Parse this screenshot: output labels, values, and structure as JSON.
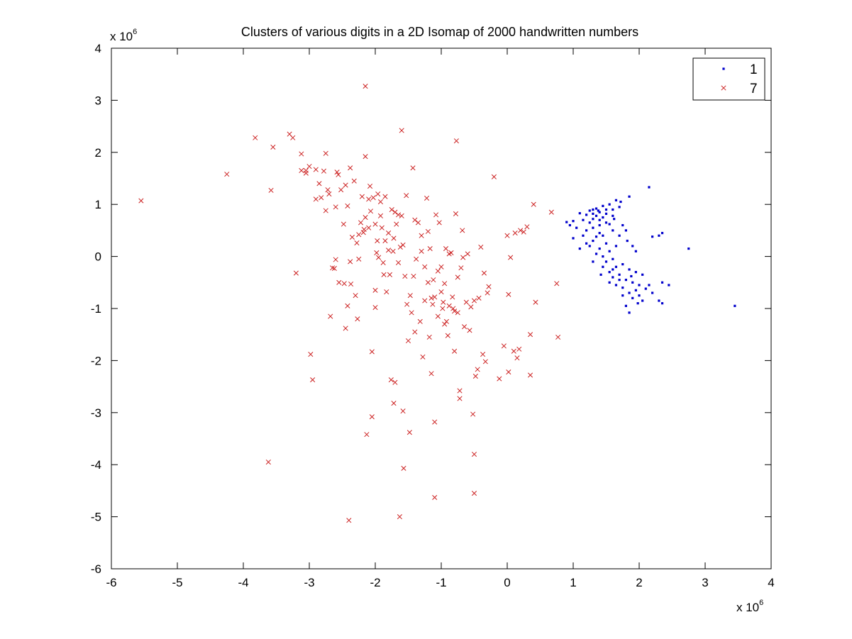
{
  "chart_data": {
    "type": "scatter",
    "title": "Clusters of various digits in a 2D Isomap of 2000 handwritten numbers",
    "xlabel": "",
    "ylabel": "",
    "x_exponent": "x 10",
    "x_exponent_power": "6",
    "y_exponent": "x 10",
    "y_exponent_power": "6",
    "xlim": [
      -6,
      4
    ],
    "ylim": [
      -6,
      4
    ],
    "xticks": [
      -6,
      -5,
      -4,
      -3,
      -2,
      -1,
      0,
      1,
      2,
      3,
      4
    ],
    "yticks": [
      -6,
      -5,
      -4,
      -3,
      -2,
      -1,
      0,
      1,
      2,
      3,
      4
    ],
    "grid": false,
    "legend_position": "top-right",
    "series": [
      {
        "name": "1",
        "marker": "dot",
        "color": "#0000cc",
        "points": [
          [
            2.15,
            1.33
          ],
          [
            1.85,
            1.15
          ],
          [
            1.65,
            1.08
          ],
          [
            1.72,
            1.05
          ],
          [
            1.55,
            1.0
          ],
          [
            1.45,
            0.97
          ],
          [
            1.35,
            0.92
          ],
          [
            1.3,
            0.9
          ],
          [
            1.25,
            0.88
          ],
          [
            1.4,
            0.85
          ],
          [
            1.5,
            0.82
          ],
          [
            1.2,
            0.8
          ],
          [
            1.1,
            0.83
          ],
          [
            1.35,
            0.78
          ],
          [
            1.6,
            0.78
          ],
          [
            1.45,
            0.75
          ],
          [
            1.3,
            0.72
          ],
          [
            1.15,
            0.7
          ],
          [
            1.0,
            0.68
          ],
          [
            0.9,
            0.66
          ],
          [
            1.25,
            0.65
          ],
          [
            1.55,
            0.62
          ],
          [
            1.75,
            0.6
          ],
          [
            0.95,
            0.6
          ],
          [
            1.05,
            0.55
          ],
          [
            1.2,
            0.5
          ],
          [
            1.4,
            0.45
          ],
          [
            1.8,
            0.5
          ],
          [
            1.15,
            0.4
          ],
          [
            1.35,
            0.38
          ],
          [
            2.35,
            0.45
          ],
          [
            2.3,
            0.4
          ],
          [
            2.2,
            0.38
          ],
          [
            1.0,
            0.35
          ],
          [
            1.3,
            0.3
          ],
          [
            1.5,
            0.25
          ],
          [
            1.25,
            0.2
          ],
          [
            1.4,
            0.15
          ],
          [
            1.55,
            0.1
          ],
          [
            1.35,
            0.05
          ],
          [
            1.45,
            0.0
          ],
          [
            1.6,
            -0.05
          ],
          [
            1.5,
            -0.1
          ],
          [
            1.75,
            -0.15
          ],
          [
            1.65,
            -0.2
          ],
          [
            1.85,
            -0.25
          ],
          [
            1.55,
            -0.3
          ],
          [
            1.7,
            -0.35
          ],
          [
            1.95,
            -0.3
          ],
          [
            1.6,
            -0.4
          ],
          [
            1.8,
            -0.45
          ],
          [
            1.9,
            -0.5
          ],
          [
            1.65,
            -0.55
          ],
          [
            2.0,
            -0.55
          ],
          [
            1.75,
            -0.6
          ],
          [
            2.1,
            -0.62
          ],
          [
            1.85,
            -0.7
          ],
          [
            2.0,
            -0.75
          ],
          [
            2.2,
            -0.7
          ],
          [
            1.9,
            -0.8
          ],
          [
            2.05,
            -0.85
          ],
          [
            1.8,
            -0.95
          ],
          [
            1.85,
            -1.08
          ],
          [
            2.15,
            -0.55
          ],
          [
            2.35,
            -0.5
          ],
          [
            2.45,
            -0.55
          ],
          [
            2.3,
            -0.85
          ],
          [
            2.35,
            -0.9
          ],
          [
            2.75,
            0.15
          ],
          [
            3.45,
            -0.95
          ],
          [
            1.4,
            0.6
          ],
          [
            1.3,
            0.55
          ],
          [
            1.6,
            0.5
          ],
          [
            1.7,
            0.4
          ],
          [
            1.9,
            0.2
          ],
          [
            1.95,
            0.1
          ],
          [
            1.2,
            0.25
          ],
          [
            1.1,
            0.15
          ],
          [
            1.3,
            -0.1
          ],
          [
            1.45,
            -0.2
          ],
          [
            1.6,
            -0.25
          ],
          [
            1.7,
            -0.45
          ],
          [
            1.55,
            -0.5
          ],
          [
            1.75,
            -0.75
          ],
          [
            1.95,
            -0.65
          ],
          [
            2.05,
            -0.35
          ],
          [
            1.65,
            0.2
          ],
          [
            1.5,
            0.65
          ],
          [
            1.4,
            0.7
          ],
          [
            1.3,
            0.82
          ],
          [
            1.6,
            0.9
          ],
          [
            1.7,
            0.95
          ],
          [
            1.5,
            0.9
          ],
          [
            1.38,
            0.88
          ],
          [
            1.62,
            0.72
          ],
          [
            1.45,
            0.4
          ],
          [
            1.82,
            0.3
          ],
          [
            1.42,
            -0.35
          ],
          [
            1.88,
            -0.38
          ],
          [
            1.98,
            -0.9
          ]
        ]
      },
      {
        "name": "7",
        "marker": "x",
        "color": "#cc2222",
        "points": [
          [
            -5.55,
            1.07
          ],
          [
            -4.25,
            1.58
          ],
          [
            -3.82,
            2.28
          ],
          [
            -3.62,
            -3.95
          ],
          [
            -3.58,
            1.27
          ],
          [
            -3.55,
            2.1
          ],
          [
            -3.3,
            2.35
          ],
          [
            -3.25,
            2.28
          ],
          [
            -3.2,
            -0.32
          ],
          [
            -3.12,
            1.97
          ],
          [
            -3.12,
            1.65
          ],
          [
            -3.05,
            1.65
          ],
          [
            -3.0,
            1.73
          ],
          [
            -2.98,
            -1.88
          ],
          [
            -2.95,
            -2.37
          ],
          [
            -2.9,
            1.67
          ],
          [
            -2.85,
            1.4
          ],
          [
            -2.82,
            1.13
          ],
          [
            -2.78,
            1.64
          ],
          [
            -2.75,
            1.98
          ],
          [
            -2.72,
            1.28
          ],
          [
            -2.7,
            1.2
          ],
          [
            -2.75,
            0.88
          ],
          [
            -2.68,
            -1.15
          ],
          [
            -2.65,
            -0.22
          ],
          [
            -2.62,
            -0.23
          ],
          [
            -2.58,
            1.62
          ],
          [
            -2.56,
            1.57
          ],
          [
            -2.55,
            -0.5
          ],
          [
            -2.52,
            1.28
          ],
          [
            -2.48,
            0.62
          ],
          [
            -2.47,
            -0.52
          ],
          [
            -2.45,
            1.37
          ],
          [
            -2.45,
            -1.38
          ],
          [
            -2.42,
            0.97
          ],
          [
            -2.42,
            -0.95
          ],
          [
            -2.4,
            -5.07
          ],
          [
            -2.38,
            1.7
          ],
          [
            -2.37,
            -0.53
          ],
          [
            -2.35,
            0.37
          ],
          [
            -2.32,
            1.45
          ],
          [
            -2.3,
            -0.75
          ],
          [
            -2.28,
            0.26
          ],
          [
            -2.27,
            -1.2
          ],
          [
            -2.25,
            -0.05
          ],
          [
            -2.22,
            0.65
          ],
          [
            -2.2,
            1.15
          ],
          [
            -2.18,
            0.46
          ],
          [
            -2.17,
            0.52
          ],
          [
            -2.15,
            3.27
          ],
          [
            -2.15,
            1.92
          ],
          [
            -2.13,
            -3.42
          ],
          [
            -2.1,
            0.55
          ],
          [
            -2.08,
            1.35
          ],
          [
            -2.07,
            0.87
          ],
          [
            -2.05,
            -3.08
          ],
          [
            -2.05,
            -1.83
          ],
          [
            -2.03,
            1.13
          ],
          [
            -2.0,
            -0.98
          ],
          [
            -2.0,
            -0.65
          ],
          [
            -1.98,
            0.07
          ],
          [
            -1.97,
            0.3
          ],
          [
            -1.96,
            1.2
          ],
          [
            -1.92,
            0.78
          ],
          [
            -1.9,
            0.55
          ],
          [
            -1.88,
            -0.12
          ],
          [
            -1.87,
            -0.35
          ],
          [
            -1.85,
            1.15
          ],
          [
            -1.83,
            -0.68
          ],
          [
            -1.8,
            0.45
          ],
          [
            -1.8,
            0.12
          ],
          [
            -1.78,
            -0.35
          ],
          [
            -1.76,
            -2.37
          ],
          [
            -1.73,
            0.1
          ],
          [
            -1.72,
            -2.82
          ],
          [
            -1.7,
            -2.42
          ],
          [
            -1.7,
            0.85
          ],
          [
            -1.68,
            0.62
          ],
          [
            -1.65,
            0.8
          ],
          [
            -1.63,
            -5.0
          ],
          [
            -1.62,
            0.18
          ],
          [
            -1.6,
            2.42
          ],
          [
            -1.58,
            -2.97
          ],
          [
            -1.57,
            -4.07
          ],
          [
            -1.55,
            -0.38
          ],
          [
            -1.53,
            1.17
          ],
          [
            -1.52,
            -0.92
          ],
          [
            -1.5,
            -1.62
          ],
          [
            -1.48,
            -3.38
          ],
          [
            -1.47,
            -0.75
          ],
          [
            -1.45,
            -1.08
          ],
          [
            -1.43,
            1.7
          ],
          [
            -1.42,
            -0.38
          ],
          [
            -1.4,
            -1.45
          ],
          [
            -1.38,
            -0.05
          ],
          [
            -1.35,
            0.65
          ],
          [
            -1.32,
            -1.25
          ],
          [
            -1.3,
            0.4
          ],
          [
            -1.28,
            -1.93
          ],
          [
            -1.25,
            -0.85
          ],
          [
            -1.25,
            -0.2
          ],
          [
            -1.22,
            1.12
          ],
          [
            -1.2,
            0.48
          ],
          [
            -1.18,
            -1.55
          ],
          [
            -1.17,
            0.15
          ],
          [
            -1.15,
            -2.25
          ],
          [
            -1.13,
            -0.92
          ],
          [
            -1.12,
            -0.45
          ],
          [
            -1.1,
            -0.78
          ],
          [
            -1.1,
            -3.18
          ],
          [
            -1.1,
            -4.63
          ],
          [
            -1.08,
            0.8
          ],
          [
            -1.05,
            -0.28
          ],
          [
            -1.03,
            0.65
          ],
          [
            -1.0,
            -0.68
          ],
          [
            -0.98,
            -1.0
          ],
          [
            -0.97,
            -0.88
          ],
          [
            -0.95,
            -0.52
          ],
          [
            -0.93,
            0.15
          ],
          [
            -0.92,
            -1.25
          ],
          [
            -0.9,
            -1.52
          ],
          [
            -0.88,
            0.05
          ],
          [
            -0.85,
            0.07
          ],
          [
            -0.83,
            -0.78
          ],
          [
            -0.82,
            -1.0
          ],
          [
            -0.8,
            -1.82
          ],
          [
            -0.78,
            0.82
          ],
          [
            -0.77,
            2.22
          ],
          [
            -0.75,
            -1.08
          ],
          [
            -0.72,
            -2.58
          ],
          [
            -0.72,
            -2.73
          ],
          [
            -0.7,
            -0.22
          ],
          [
            -0.68,
            0.5
          ],
          [
            -0.67,
            -0.02
          ],
          [
            -0.65,
            -1.35
          ],
          [
            -0.62,
            -0.88
          ],
          [
            -0.57,
            -1.42
          ],
          [
            -0.55,
            -0.97
          ],
          [
            -0.52,
            -3.03
          ],
          [
            -0.5,
            -3.8
          ],
          [
            -0.5,
            -4.55
          ],
          [
            -0.48,
            -2.3
          ],
          [
            -0.45,
            -2.17
          ],
          [
            -0.43,
            -0.8
          ],
          [
            -0.4,
            0.18
          ],
          [
            -0.37,
            -1.88
          ],
          [
            -0.35,
            -0.32
          ],
          [
            -0.33,
            -2.02
          ],
          [
            -0.3,
            -0.7
          ],
          [
            -0.28,
            -0.58
          ],
          [
            -0.2,
            1.53
          ],
          [
            -0.12,
            -2.35
          ],
          [
            -0.05,
            -1.72
          ],
          [
            0.0,
            0.4
          ],
          [
            0.02,
            -0.73
          ],
          [
            0.02,
            -2.22
          ],
          [
            0.05,
            -0.02
          ],
          [
            0.1,
            -1.82
          ],
          [
            0.12,
            0.45
          ],
          [
            0.15,
            -1.95
          ],
          [
            0.18,
            -1.78
          ],
          [
            0.2,
            0.5
          ],
          [
            0.25,
            0.47
          ],
          [
            0.3,
            0.57
          ],
          [
            0.35,
            -1.5
          ],
          [
            0.35,
            -2.28
          ],
          [
            0.4,
            1.0
          ],
          [
            0.43,
            -0.88
          ],
          [
            0.67,
            0.85
          ],
          [
            0.75,
            -0.52
          ],
          [
            0.77,
            -1.55
          ],
          [
            -2.6,
            -0.06
          ],
          [
            -2.38,
            -0.1
          ],
          [
            -1.95,
            -0.02
          ],
          [
            -1.72,
            0.35
          ],
          [
            -1.58,
            0.22
          ],
          [
            -1.4,
            0.7
          ],
          [
            -1.15,
            -0.8
          ],
          [
            -1.05,
            -1.15
          ],
          [
            -0.95,
            -1.3
          ],
          [
            -0.88,
            -0.95
          ],
          [
            -0.8,
            -1.05
          ],
          [
            -1.65,
            -0.12
          ],
          [
            -1.85,
            0.3
          ],
          [
            -2.0,
            0.62
          ],
          [
            -2.25,
            0.42
          ],
          [
            -2.1,
            1.1
          ],
          [
            -1.92,
            1.05
          ],
          [
            -1.75,
            0.9
          ],
          [
            -1.6,
            0.78
          ],
          [
            -1.3,
            0.1
          ],
          [
            -1.2,
            -0.5
          ],
          [
            -1.0,
            -0.2
          ],
          [
            -0.75,
            -0.4
          ],
          [
            -0.6,
            0.05
          ],
          [
            -0.5,
            -0.85
          ],
          [
            -2.6,
            0.95
          ],
          [
            -2.9,
            1.1
          ],
          [
            -3.05,
            1.6
          ],
          [
            -2.15,
            0.75
          ]
        ]
      }
    ]
  }
}
